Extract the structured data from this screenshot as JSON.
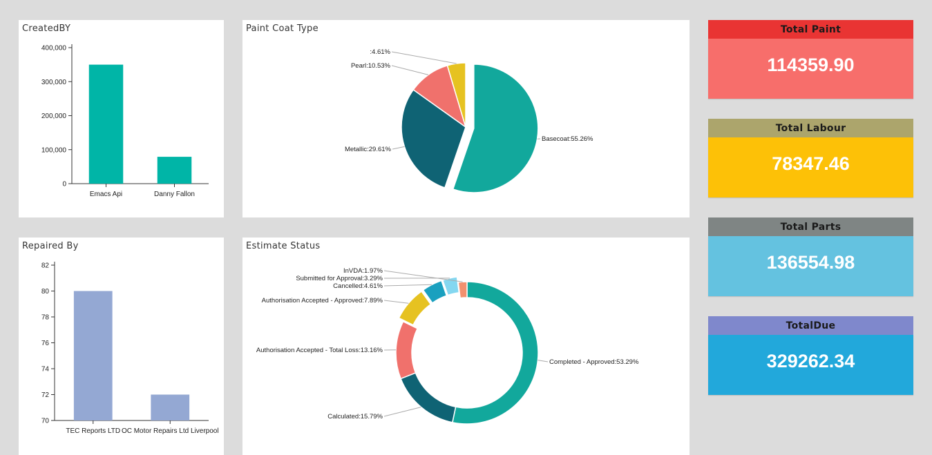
{
  "panels": {
    "created_by": {
      "title": "CreatedBY"
    },
    "paint_coat": {
      "title": "Paint Coat Type"
    },
    "repaired_by": {
      "title": "Repaired By"
    },
    "estimate_status": {
      "title": "Estimate Status"
    }
  },
  "kpis": [
    {
      "label": "Total Paint",
      "value": "114359.90",
      "head_color": "#e93433",
      "body_color": "#f76e6b"
    },
    {
      "label": "Total Labour",
      "value": "78347.46",
      "head_color": "#aca56c",
      "body_color": "#fdc107"
    },
    {
      "label": "Total Parts",
      "value": "136554.98",
      "head_color": "#7f8584",
      "body_color": "#64c2e0"
    },
    {
      "label": "TotalDue",
      "value": "329262.34",
      "head_color": "#7f88cc",
      "body_color": "#22a8db"
    }
  ],
  "chart_data": [
    {
      "id": "created_by",
      "type": "bar",
      "title": "CreatedBY",
      "categories": [
        "Emacs Api",
        "Danny Fallon"
      ],
      "values": [
        350000,
        79000
      ],
      "yticks": [
        "0",
        "100,000",
        "200,000",
        "300,000",
        "400,000"
      ],
      "ylim": [
        0,
        400000
      ],
      "color": "#00b5a7"
    },
    {
      "id": "paint_coat",
      "type": "pie",
      "title": "Paint Coat Type",
      "slices": [
        {
          "label": "Basecoat:55.26%",
          "value": 55.26,
          "color": "#12a89c",
          "exploded": true
        },
        {
          "label": "Metallic:29.61%",
          "value": 29.61,
          "color": "#0f6374",
          "exploded": false
        },
        {
          "label": "Pearl:10.53%",
          "value": 10.53,
          "color": "#f0716c",
          "exploded": false
        },
        {
          "label": ":4.61%",
          "value": 4.61,
          "color": "#e6c221",
          "exploded": false
        }
      ]
    },
    {
      "id": "repaired_by",
      "type": "bar",
      "title": "Repaired By",
      "categories": [
        "TEC Reports LTD",
        "OC Motor Repairs Ltd Liverpool"
      ],
      "values": [
        80,
        72
      ],
      "yticks": [
        "70",
        "72",
        "74",
        "76",
        "78",
        "80",
        "82"
      ],
      "ylim": [
        70,
        82
      ],
      "color": "#94a8d3"
    },
    {
      "id": "estimate_status",
      "type": "pie",
      "title": "Estimate Status",
      "donut": true,
      "slices": [
        {
          "label": "Completed - Approved:53.29%",
          "value": 53.29,
          "color": "#12a89c",
          "exploded": false
        },
        {
          "label": "Calculated:15.79%",
          "value": 15.79,
          "color": "#0f6374",
          "exploded": false
        },
        {
          "label": "Authorisation Accepted - Total Loss:13.16%",
          "value": 13.16,
          "color": "#f0716c",
          "exploded": false
        },
        {
          "label": "Authorisation Accepted - Approved:7.89%",
          "value": 7.89,
          "color": "#e6c221",
          "exploded": true
        },
        {
          "label": "Cancelled:4.61%",
          "value": 4.61,
          "color": "#1aa0bf",
          "exploded": true
        },
        {
          "label": "Submitted for Approval:3.29%",
          "value": 3.29,
          "color": "#84d7f0",
          "exploded": true
        },
        {
          "label": "InVDA:1.97%",
          "value": 1.97,
          "color": "#f2916f",
          "exploded": false
        }
      ]
    }
  ]
}
